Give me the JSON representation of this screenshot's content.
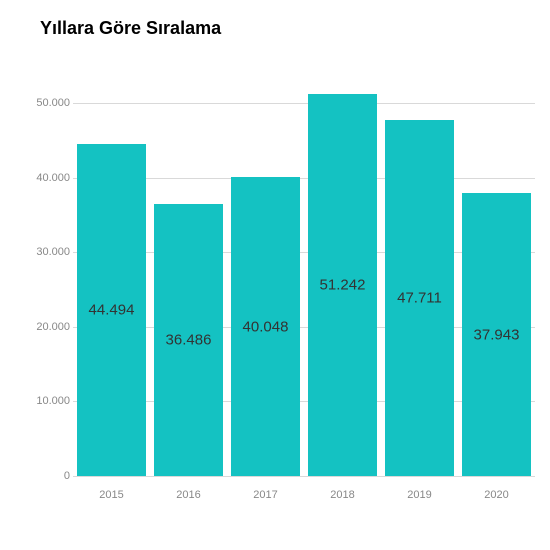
{
  "chart": {
    "type": "bar",
    "title": "Yıllara Göre Sıralama",
    "title_fontsize": 18,
    "title_weight": "bold",
    "background_color": "#ffffff",
    "grid_color": "#d9d9d9",
    "axis_text_color": "#888888",
    "bar_color": "#14c2c2",
    "bar_label_color": "#333333",
    "bar_label_fontsize": 15,
    "tick_fontsize": 11,
    "bar_width": 0.9,
    "categories": [
      "2015",
      "2016",
      "2017",
      "2018",
      "2019",
      "2020"
    ],
    "values": [
      44494,
      36486,
      40048,
      51242,
      47711,
      37943
    ],
    "value_labels": [
      "44.494",
      "36.486",
      "40.048",
      "51.242",
      "47.711",
      "37.943"
    ],
    "ylim": [
      0,
      55000
    ],
    "ytick_values": [
      0,
      10000,
      20000,
      30000,
      40000,
      50000
    ],
    "ytick_labels": [
      "0",
      "10.000",
      "20.000",
      "30.000",
      "40.000",
      "50.000"
    ]
  }
}
